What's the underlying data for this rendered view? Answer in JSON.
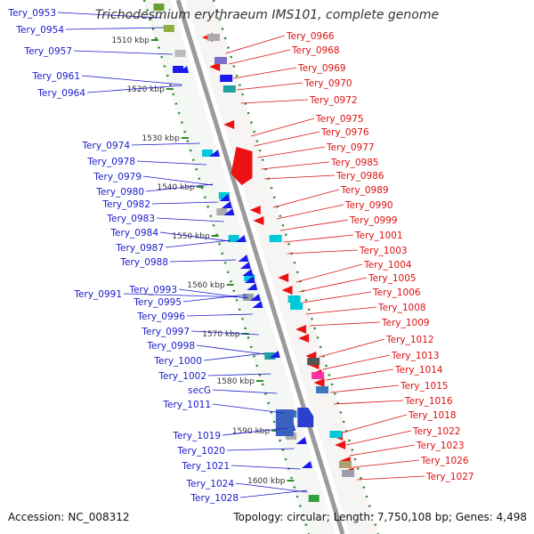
{
  "title": "Trichodesmium erythraeum IMS101, complete genome",
  "footer": {
    "accession_label": "Accession:",
    "accession": "NC_008312",
    "topology_label": "Topology:",
    "topology": "circular",
    "length_label": "Length:",
    "length": "7,750,108 bp",
    "genes_label": "Genes:",
    "genes": "4,498"
  },
  "colors": {
    "backbone": "#9a9a9a",
    "ticks": "#2e8b2e",
    "left_labels": "#1a1acc",
    "right_labels": "#dd1111",
    "tick_label": "#333333"
  },
  "kbp_labels": [
    "1510 kbp",
    "1520 kbp",
    "1530 kbp",
    "1540 kbp",
    "1550 kbp",
    "1560 kbp",
    "1570 kbp",
    "1580 kbp",
    "1590 kbp",
    "1600 kbp"
  ],
  "left_genes": [
    "Tery_0953",
    "Tery_0954",
    "Tery_0957",
    "Tery_0961",
    "Tery_0964",
    "Tery_0974",
    "Tery_0978",
    "Tery_0979",
    "Tery_0980",
    "Tery_0982",
    "Tery_0983",
    "Tery_0984",
    "Tery_0987",
    "Tery_0988",
    "Tery_0991",
    "Tery_0993",
    "Tery_0995",
    "Tery_0996",
    "Tery_0997",
    "Tery_0998",
    "Tery_1000",
    "Tery_1002",
    "secG",
    "Tery_1011",
    "Tery_1019",
    "Tery_1020",
    "Tery_1021",
    "Tery_1024",
    "Tery_1028"
  ],
  "right_genes": [
    "Tery_0966",
    "Tery_0968",
    "Tery_0969",
    "Tery_0970",
    "Tery_0972",
    "Tery_0975",
    "Tery_0976",
    "Tery_0977",
    "Tery_0985",
    "Tery_0986",
    "Tery_0989",
    "Tery_0990",
    "Tery_0999",
    "Tery_1001",
    "Tery_1003",
    "Tery_1004",
    "Tery_1005",
    "Tery_1006",
    "Tery_1008",
    "Tery_1009",
    "Tery_1012",
    "Tery_1013",
    "Tery_1014",
    "Tery_1015",
    "Tery_1016",
    "Tery_1018",
    "Tery_1022",
    "Tery_1023",
    "Tery_1026",
    "Tery_1027"
  ]
}
